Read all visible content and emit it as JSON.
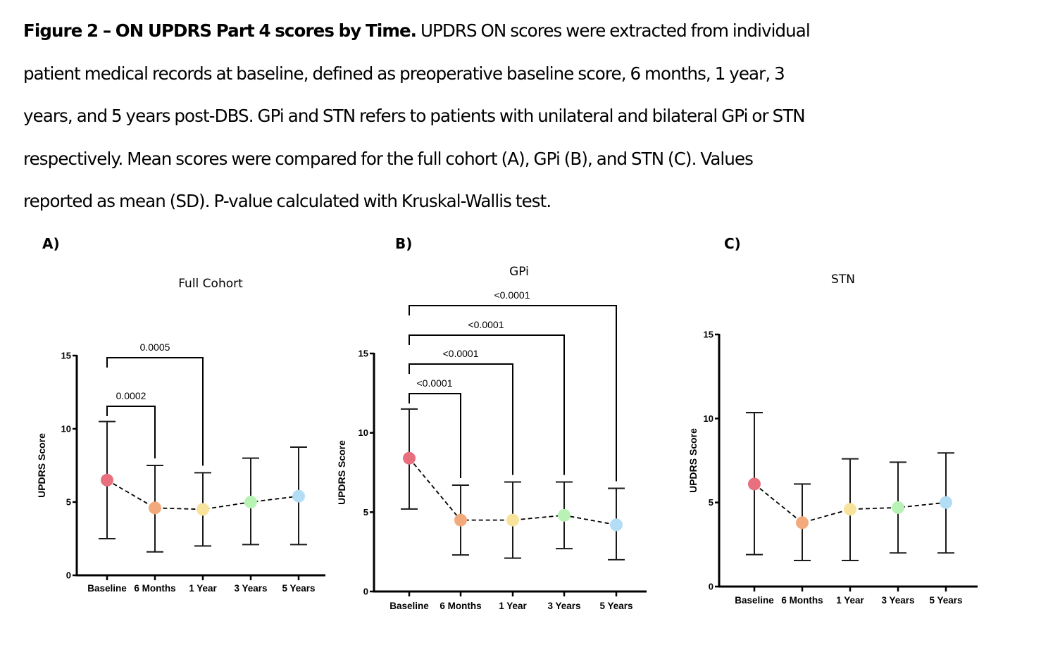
{
  "caption": {
    "bold": "Figure 2 – ON UPDRS Part 4 scores by Time.",
    "line1": " UPDRS ON scores were extracted from individual",
    "line2": "patient medical records at baseline, defined as preoperative baseline score, 6 months, 1 year, 3",
    "line3": "years, and 5 years post-DBS. GPi and STN refers to patients with unilateral and bilateral GPi or STN",
    "line4": "respectively.  Mean scores were compared for the full cohort (A), GPi (B), and STN (C). Values",
    "line5": "reported as mean (SD). P-value calculated with Kruskal-Wallis test."
  },
  "colors": {
    "Baseline": "#e8707e",
    "6 Months": "#f2aa7c",
    "1 Year": "#f7e39c",
    "3 Years": "#b8f2b4",
    "5 Years": "#b3dcf5",
    "axis": "#000000",
    "errorbar": "#1a1a1a"
  },
  "chart_data": [
    {
      "panel": "A)",
      "type": "line",
      "title": "Full Cohort",
      "xlabel": "",
      "ylabel": "UPDRS Score",
      "ylim": [
        0,
        15
      ],
      "yticks": [
        0,
        5,
        10,
        15
      ],
      "grid": false,
      "categories": [
        "Baseline",
        "6 Months",
        "1 Year",
        "3 Years",
        "5 Years"
      ],
      "series": [
        {
          "name": "Full Cohort",
          "values": [
            6.5,
            4.6,
            4.5,
            5.0,
            5.4
          ],
          "error_upper": [
            10.5,
            7.5,
            7.0,
            8.0,
            8.75
          ],
          "error_lower": [
            2.5,
            1.6,
            2.0,
            2.1,
            2.1
          ]
        }
      ],
      "comparisons": [
        {
          "from": "Baseline",
          "to": "6 Months",
          "label": "0.0002"
        },
        {
          "from": "Baseline",
          "to": "1 Year",
          "label": "0.0005"
        }
      ]
    },
    {
      "panel": "B)",
      "type": "line",
      "title": "GPi",
      "xlabel": "",
      "ylabel": "UPDRS Score",
      "ylim": [
        0,
        15
      ],
      "yticks": [
        0,
        5,
        10,
        15
      ],
      "grid": false,
      "categories": [
        "Baseline",
        "6 Months",
        "1 Year",
        "3 Years",
        "5 Years"
      ],
      "series": [
        {
          "name": "GPi",
          "values": [
            8.4,
            4.5,
            4.5,
            4.8,
            4.2
          ],
          "error_upper": [
            11.5,
            6.7,
            6.9,
            6.9,
            6.5
          ],
          "error_lower": [
            5.2,
            2.3,
            2.1,
            2.7,
            2.0
          ]
        }
      ],
      "comparisons": [
        {
          "from": "Baseline",
          "to": "6 Months",
          "label": "<0.0001"
        },
        {
          "from": "Baseline",
          "to": "1 Year",
          "label": "<0.0001"
        },
        {
          "from": "Baseline",
          "to": "3 Years",
          "label": "<0.0001"
        },
        {
          "from": "Baseline",
          "to": "5 Years",
          "label": "<0.0001"
        }
      ]
    },
    {
      "panel": "C)",
      "type": "line",
      "title": "STN",
      "xlabel": "",
      "ylabel": "UPDRS Score",
      "ylim": [
        0,
        15
      ],
      "yticks": [
        0,
        5,
        10,
        15
      ],
      "grid": false,
      "categories": [
        "Baseline",
        "6 Months",
        "1 Year",
        "3 Years",
        "5 Years"
      ],
      "series": [
        {
          "name": "STN",
          "values": [
            6.1,
            3.8,
            4.6,
            4.7,
            5.0
          ],
          "error_upper": [
            10.35,
            6.1,
            7.6,
            7.4,
            7.95
          ],
          "error_lower": [
            1.9,
            1.55,
            1.55,
            2.0,
            2.0
          ]
        }
      ],
      "comparisons": []
    }
  ]
}
